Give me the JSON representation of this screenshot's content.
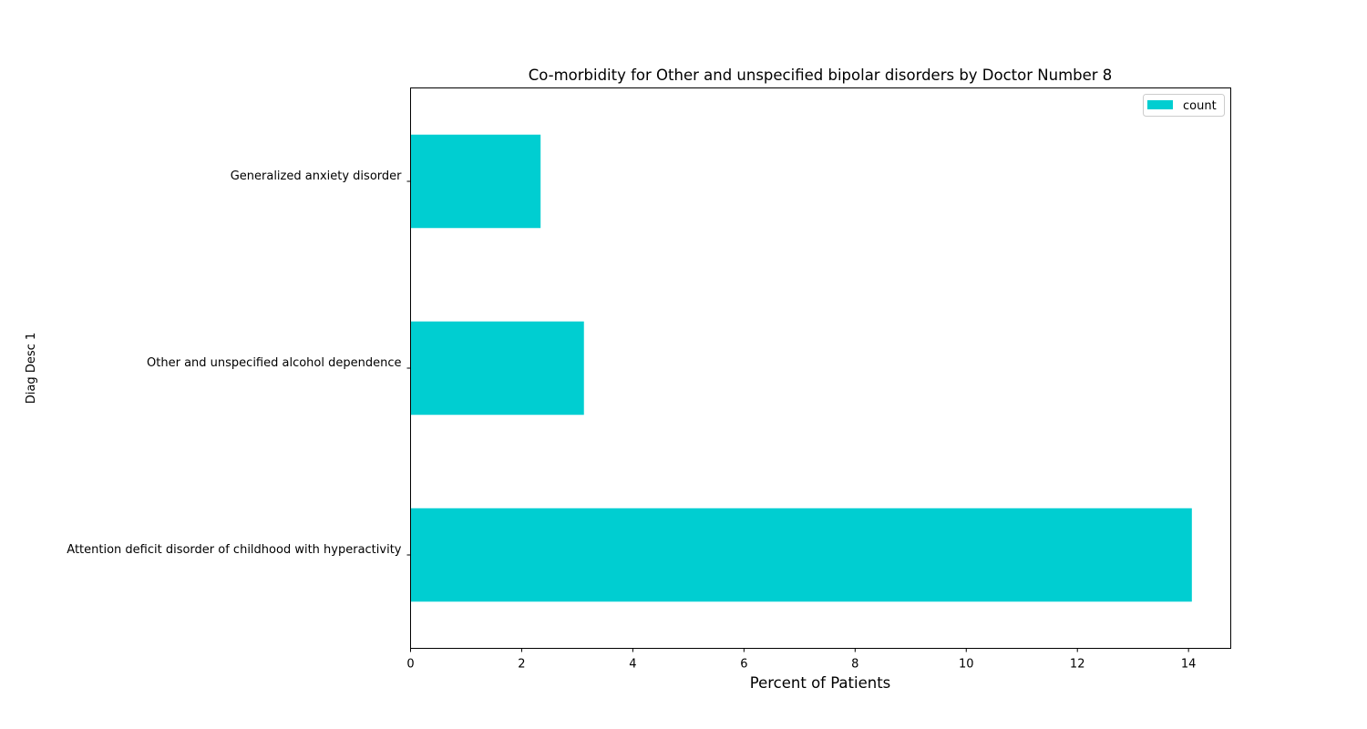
{
  "chart_data": {
    "type": "bar",
    "orientation": "horizontal",
    "title": "Co-morbidity for Other and unspecified bipolar disorders by Doctor Number 8",
    "xlabel": "Percent of Patients",
    "ylabel": "Diag Desc 1",
    "categories": [
      "Attention deficit disorder of childhood with hyperactivity",
      "Other and unspecified alcohol dependence",
      "Generalized anxiety disorder"
    ],
    "series": [
      {
        "name": "count",
        "values": [
          14.06,
          3.12,
          2.34
        ]
      }
    ],
    "xlim": [
      0,
      14.76
    ],
    "xticks": [
      0,
      2,
      4,
      6,
      8,
      10,
      12,
      14
    ],
    "xtick_labels": [
      "0",
      "2",
      "4",
      "6",
      "8",
      "10",
      "12",
      "14"
    ],
    "bar_color": "#00ced1",
    "grid": false,
    "legend": {
      "position": "top-right",
      "entries": [
        "count"
      ]
    }
  }
}
